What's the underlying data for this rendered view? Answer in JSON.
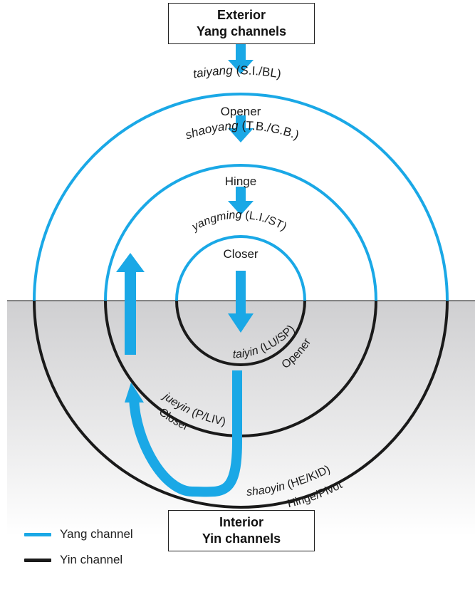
{
  "top_box": {
    "line1": "Exterior",
    "line2": "Yang channels"
  },
  "bottom_box": {
    "line1": "Interior",
    "line2": "Yin channels"
  },
  "circle_labels": {
    "taiyang_name": "taiyang",
    "taiyang_code": " (S.I./BL)",
    "taiyang_role": "Opener",
    "shaoyang_name": "shaoyang",
    "shaoyang_code": " (T.B./G.B.)",
    "shaoyang_role": "Hinge",
    "yangming_name": "yangming",
    "yangming_code": " (L.I./ST)",
    "yangming_role": "Closer",
    "taiyin_name": "taiyin",
    "taiyin_code": " (LU/SP)",
    "taiyin_role": "Opener",
    "jueyin_name": "jueyin",
    "jueyin_code": " (P/LIV)",
    "jueyin_role": "Closer",
    "shaoyin_name": "shaoyin",
    "shaoyin_code": " (HE/KID)",
    "shaoyin_role": "Hinge/Pivot"
  },
  "legend": {
    "yang_label": "Yang channel",
    "yin_label": "Yin channel"
  },
  "colors": {
    "yang": "#1aa8e6",
    "yin": "#1a1a1a",
    "shade_top": "#cfcfd1",
    "shade_bottom": "#ffffff"
  }
}
